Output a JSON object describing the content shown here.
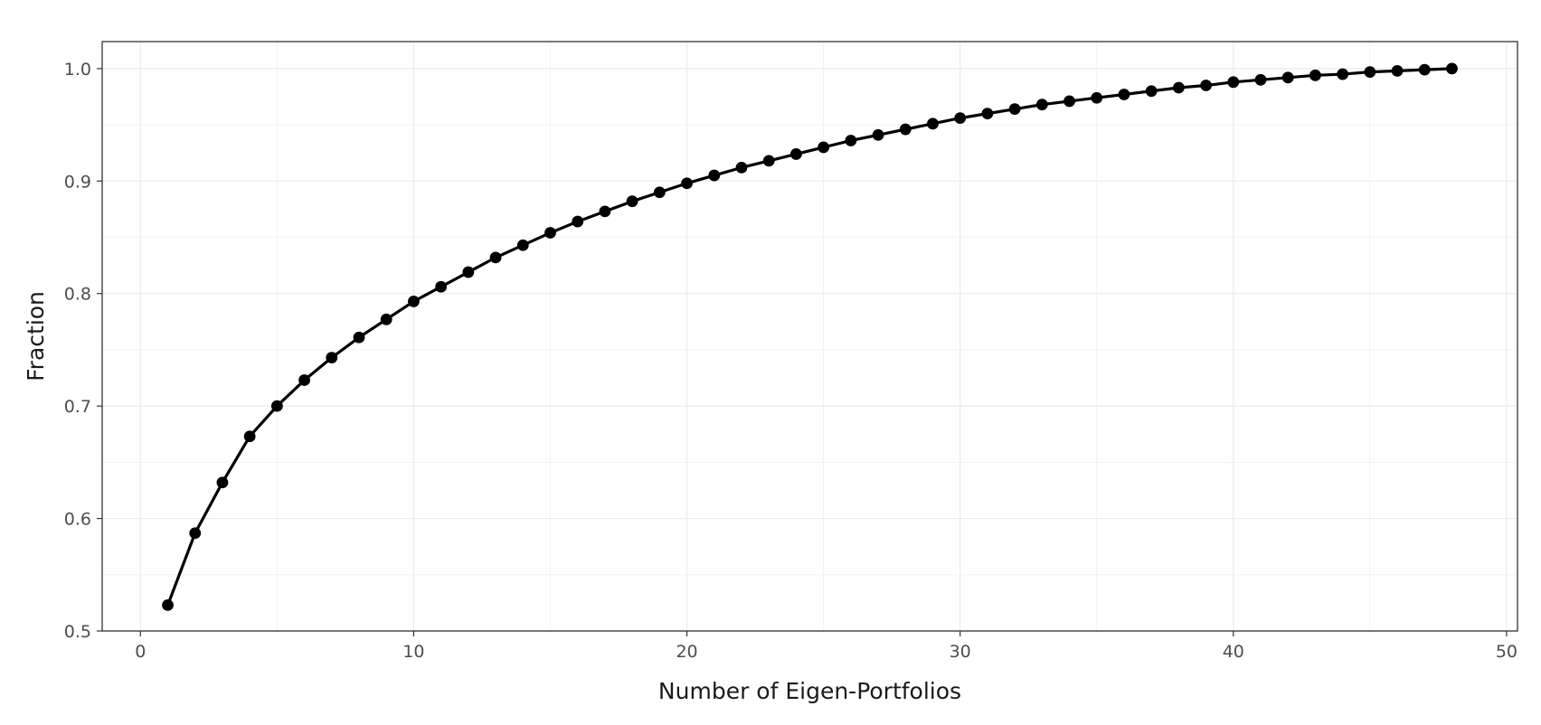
{
  "chart_data": {
    "type": "line",
    "title": "",
    "xlabel": "Number of Eigen-Portfolios",
    "ylabel": "Fraction",
    "xlim": [
      -1.4,
      50.4
    ],
    "ylim": [
      0.5,
      1.024
    ],
    "x_ticks": [
      0,
      10,
      20,
      30,
      40,
      50
    ],
    "x_tick_labels": [
      "0",
      "10",
      "20",
      "30",
      "40",
      "50"
    ],
    "y_ticks": [
      0.5,
      0.6,
      0.7,
      0.8,
      0.9,
      1.0
    ],
    "y_tick_labels": [
      "0.5",
      "0.6",
      "0.7",
      "0.8",
      "0.9",
      "1.0"
    ],
    "grid": true,
    "legend": "none",
    "colors": {
      "series": "#000000",
      "grid": "#ebebeb",
      "panel_border": "#333333",
      "tick_text": "#4d4d4d",
      "axis_title": "#1a1a1a"
    },
    "series": [
      {
        "markers": true,
        "x": [
          1,
          2,
          3,
          4,
          5,
          6,
          7,
          8,
          9,
          10,
          11,
          12,
          13,
          14,
          15,
          16,
          17,
          18,
          19,
          20,
          21,
          22,
          23,
          24,
          25,
          26,
          27,
          28,
          29,
          30,
          31,
          32,
          33,
          34,
          35,
          36,
          37,
          38,
          39,
          40,
          41,
          42,
          43,
          44,
          45,
          46,
          47,
          48
        ],
        "y": [
          0.523,
          0.587,
          0.632,
          0.673,
          0.7,
          0.723,
          0.743,
          0.761,
          0.777,
          0.793,
          0.806,
          0.819,
          0.832,
          0.843,
          0.854,
          0.864,
          0.873,
          0.882,
          0.89,
          0.898,
          0.905,
          0.912,
          0.918,
          0.924,
          0.93,
          0.936,
          0.941,
          0.946,
          0.951,
          0.956,
          0.96,
          0.964,
          0.968,
          0.971,
          0.974,
          0.977,
          0.98,
          0.983,
          0.985,
          0.988,
          0.99,
          0.992,
          0.994,
          0.995,
          0.997,
          0.998,
          0.999,
          1.0
        ]
      }
    ]
  }
}
